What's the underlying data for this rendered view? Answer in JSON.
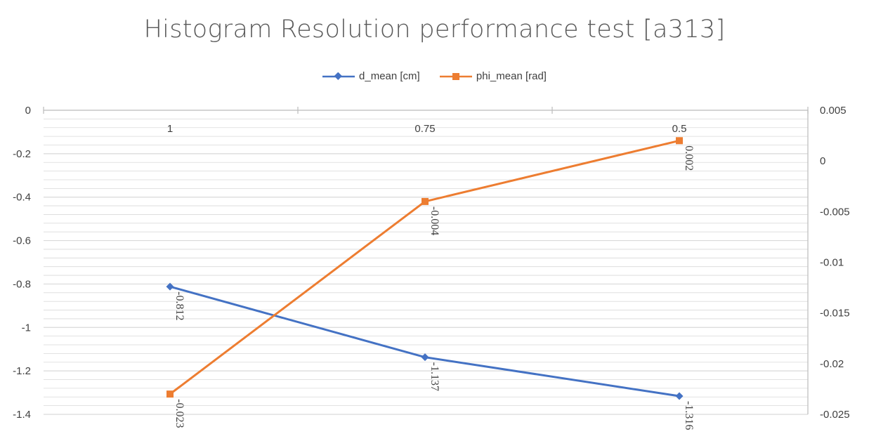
{
  "chart_data": {
    "type": "line",
    "title": "Histogram Resolution performance test [a313]",
    "categories": [
      "1",
      "0.75",
      "0.5"
    ],
    "series": [
      {
        "name": "d_mean [cm]",
        "axis": "left",
        "color": "#4472C4",
        "marker": "diamond",
        "values": [
          -0.812,
          -1.137,
          -1.316
        ],
        "labels": [
          "-0.812",
          "-1.137",
          "-1.316"
        ]
      },
      {
        "name": "phi_mean [rad]",
        "axis": "right",
        "color": "#ED7D31",
        "marker": "square",
        "values": [
          -0.023,
          -0.004,
          0.002
        ],
        "labels": [
          "-0.023",
          "-0.004",
          "0.002"
        ]
      }
    ],
    "left_axis": {
      "ylim": [
        -1.4,
        0
      ],
      "ticks": [
        "0",
        "-0.2",
        "-0.4",
        "-0.6",
        "-0.8",
        "-1",
        "-1.2",
        "-1.4"
      ]
    },
    "right_axis": {
      "ylim": [
        -0.025,
        0.005
      ],
      "ticks": [
        "0.005",
        "0",
        "-0.005",
        "-0.01",
        "-0.015",
        "-0.02",
        "-0.025"
      ]
    },
    "xlabel": "",
    "ylabel": "",
    "grid": true,
    "legend_position": "top",
    "grid_color": "#D9D9D9",
    "axis_color": "#BFBFBF"
  }
}
